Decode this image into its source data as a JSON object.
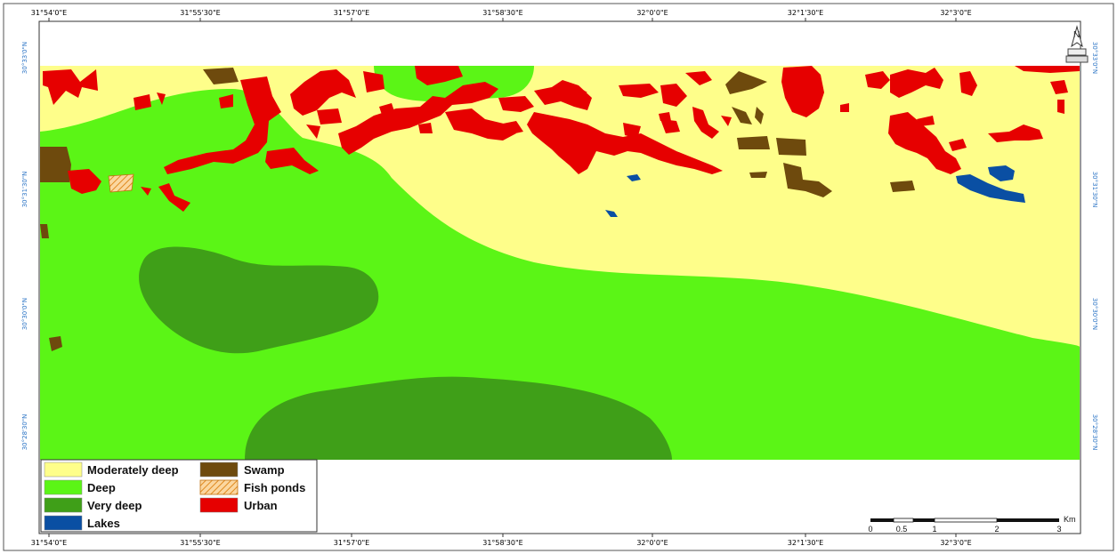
{
  "map": {
    "top_ticks": [
      "31°54'0\"E",
      "31°55'30\"E",
      "31°57'0\"E",
      "31°58'30\"E",
      "32°0'0\"E",
      "32°1'30\"E",
      "32°3'0\"E"
    ],
    "bottom_ticks": [
      "31°54'0\"E",
      "31°55'30\"E",
      "31°57'0\"E",
      "31°58'30\"E",
      "32°0'0\"E",
      "32°1'30\"E",
      "32°3'0\"E"
    ],
    "left_ticks": [
      "30°33'0\"N",
      "30°31'30\"N",
      "30°30'0\"N",
      "30°28'30\"N"
    ],
    "right_ticks": [
      "30°33'0\"N",
      "30°31'30\"N",
      "30°30'0\"N",
      "30°28'30\"N"
    ],
    "north_label": "N"
  },
  "legend": {
    "items": [
      {
        "label": "Moderately deep",
        "color": "#fefe8a"
      },
      {
        "label": "Deep",
        "color": "#5bf516"
      },
      {
        "label": "Very deep",
        "color": "#3f9f18"
      },
      {
        "label": "Lakes",
        "color": "#0a4fa3"
      },
      {
        "label": "Swamp",
        "color": "#6e4a0d"
      },
      {
        "label": "Fish ponds",
        "color": "#f0a640"
      },
      {
        "label": "Urban",
        "color": "#e60000"
      }
    ]
  },
  "scalebar": {
    "unit": "Km",
    "labels": [
      "0",
      "0.5",
      "1",
      "2",
      "3"
    ]
  },
  "colors": {
    "moderately_deep": "#fefe8a",
    "deep": "#5bf516",
    "very_deep": "#3f9f18",
    "lakes": "#0a4fa3",
    "swamp": "#6e4a0d",
    "urban": "#e60000",
    "fish_ponds": "#f0a640"
  }
}
